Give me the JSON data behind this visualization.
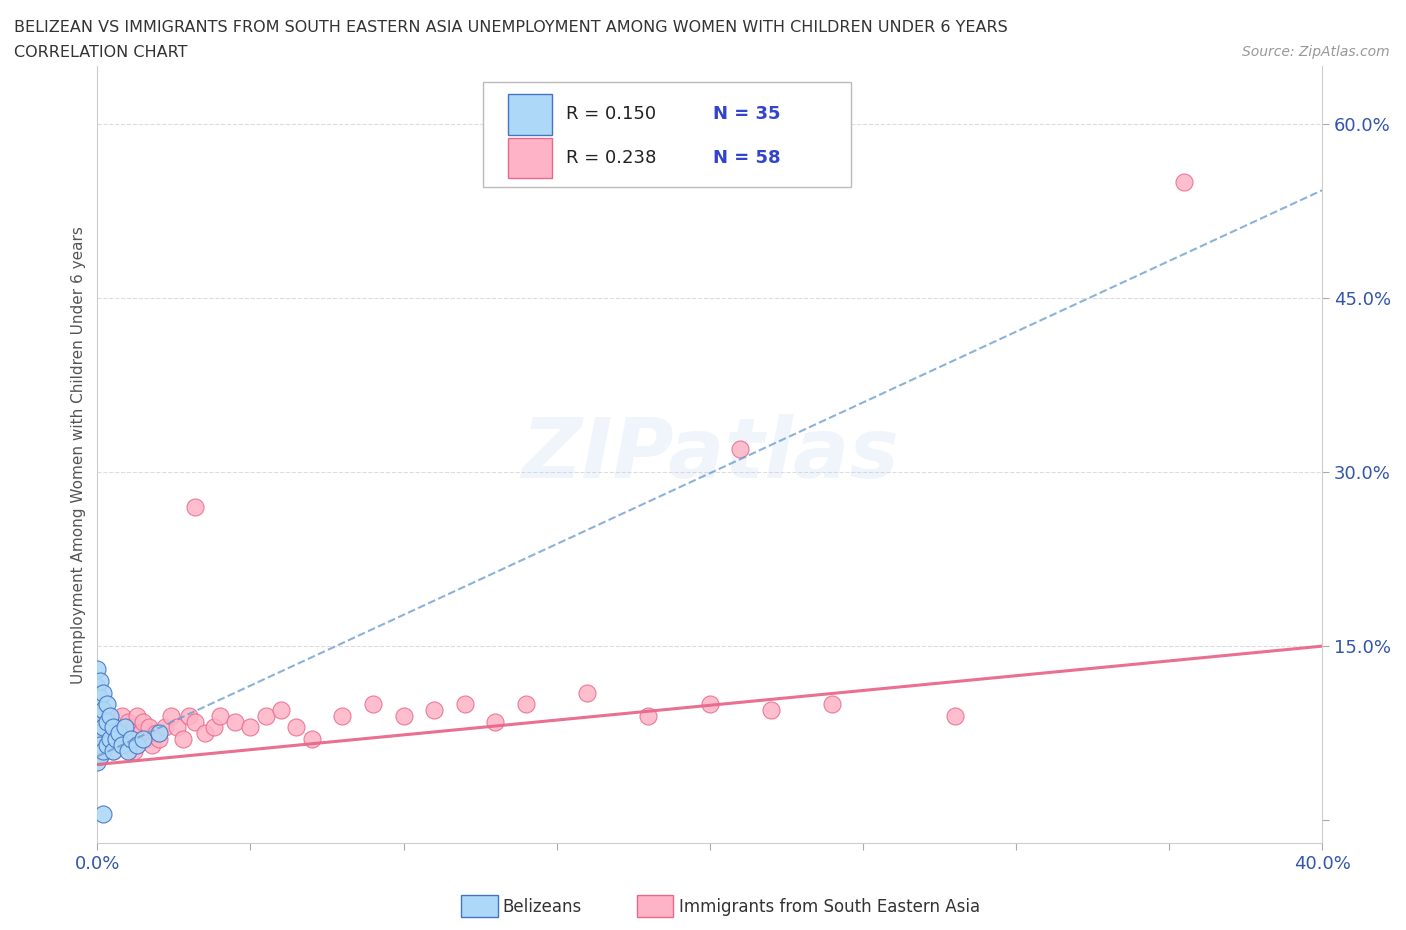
{
  "title_line1": "BELIZEAN VS IMMIGRANTS FROM SOUTH EASTERN ASIA UNEMPLOYMENT AMONG WOMEN WITH CHILDREN UNDER 6 YEARS",
  "title_line2": "CORRELATION CHART",
  "source_text": "Source: ZipAtlas.com",
  "ylabel": "Unemployment Among Women with Children Under 6 years",
  "xlim": [
    0.0,
    0.4
  ],
  "ylim": [
    -0.02,
    0.65
  ],
  "ytick_positions": [
    0.0,
    0.15,
    0.3,
    0.45,
    0.6
  ],
  "ytick_labels": [
    "",
    "15.0%",
    "30.0%",
    "45.0%",
    "60.0%"
  ],
  "belizean_color": "#ADD8F7",
  "belizean_edge": "#4472C4",
  "immigrants_color": "#FFB3C6",
  "immigrants_edge": "#E8688A",
  "trend_belizean_color": "#6699CC",
  "trend_immigrants_color": "#E8688A",
  "R_belizean": 0.15,
  "N_belizean": 35,
  "R_immigrants": 0.238,
  "N_immigrants": 58,
  "background_color": "#FFFFFF",
  "grid_color": "#DDDDDD",
  "watermark_color": "#AACCEE",
  "watermark_alpha": 0.18,
  "bel_trend_intercept": 0.055,
  "bel_trend_slope": 1.22,
  "imm_trend_intercept": 0.048,
  "imm_trend_slope": 0.255
}
